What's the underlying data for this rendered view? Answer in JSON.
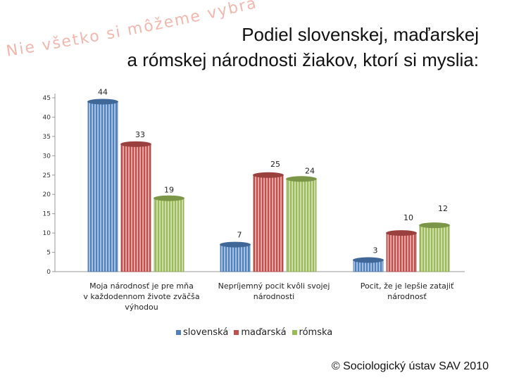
{
  "slogan": "Nie všetko si môžeme vybrať",
  "title": {
    "line1": "Podiel slovenskej, maďarskej",
    "line2": "a rómskej národnosti žiakov, ktorí si myslia:"
  },
  "footer": "© Sociologický ústav SAV 2010",
  "colors": {
    "slovenska": "#4f81bd",
    "madarska": "#c0504d",
    "romska": "#9bbb59"
  },
  "chart_data": {
    "type": "bar",
    "title": "Podiel slovenskej, maďarskej a rómskej národnosti žiakov, ktorí si myslia:",
    "categories": [
      "Moja národnosť je pre mňa v každodennom živote zväčša výhodou",
      "Nepríjemný pocit kvôli svojej národnosti",
      "Pocit, že je lepšie zatajiť národnosť"
    ],
    "category_lines": [
      [
        "Moja národnosť je pre mňa",
        "v každodennom živote zväčša",
        "výhodou"
      ],
      [
        "Nepríjemný pocit kvôli svojej",
        "národnosti"
      ],
      [
        "Pocit, že je lepšie zatajiť",
        "národnosť"
      ]
    ],
    "series": [
      {
        "name": "slovenská",
        "values": [
          44,
          7,
          3
        ]
      },
      {
        "name": "maďarská",
        "values": [
          33,
          25,
          10
        ]
      },
      {
        "name": "rómska",
        "values": [
          19,
          24,
          12
        ]
      }
    ],
    "yticks": [
      0,
      5,
      10,
      15,
      20,
      25,
      30,
      35,
      40,
      45
    ],
    "ylim": [
      0,
      45
    ],
    "xlabel": "",
    "ylabel": "",
    "legend_position": "bottom",
    "grid": false
  }
}
